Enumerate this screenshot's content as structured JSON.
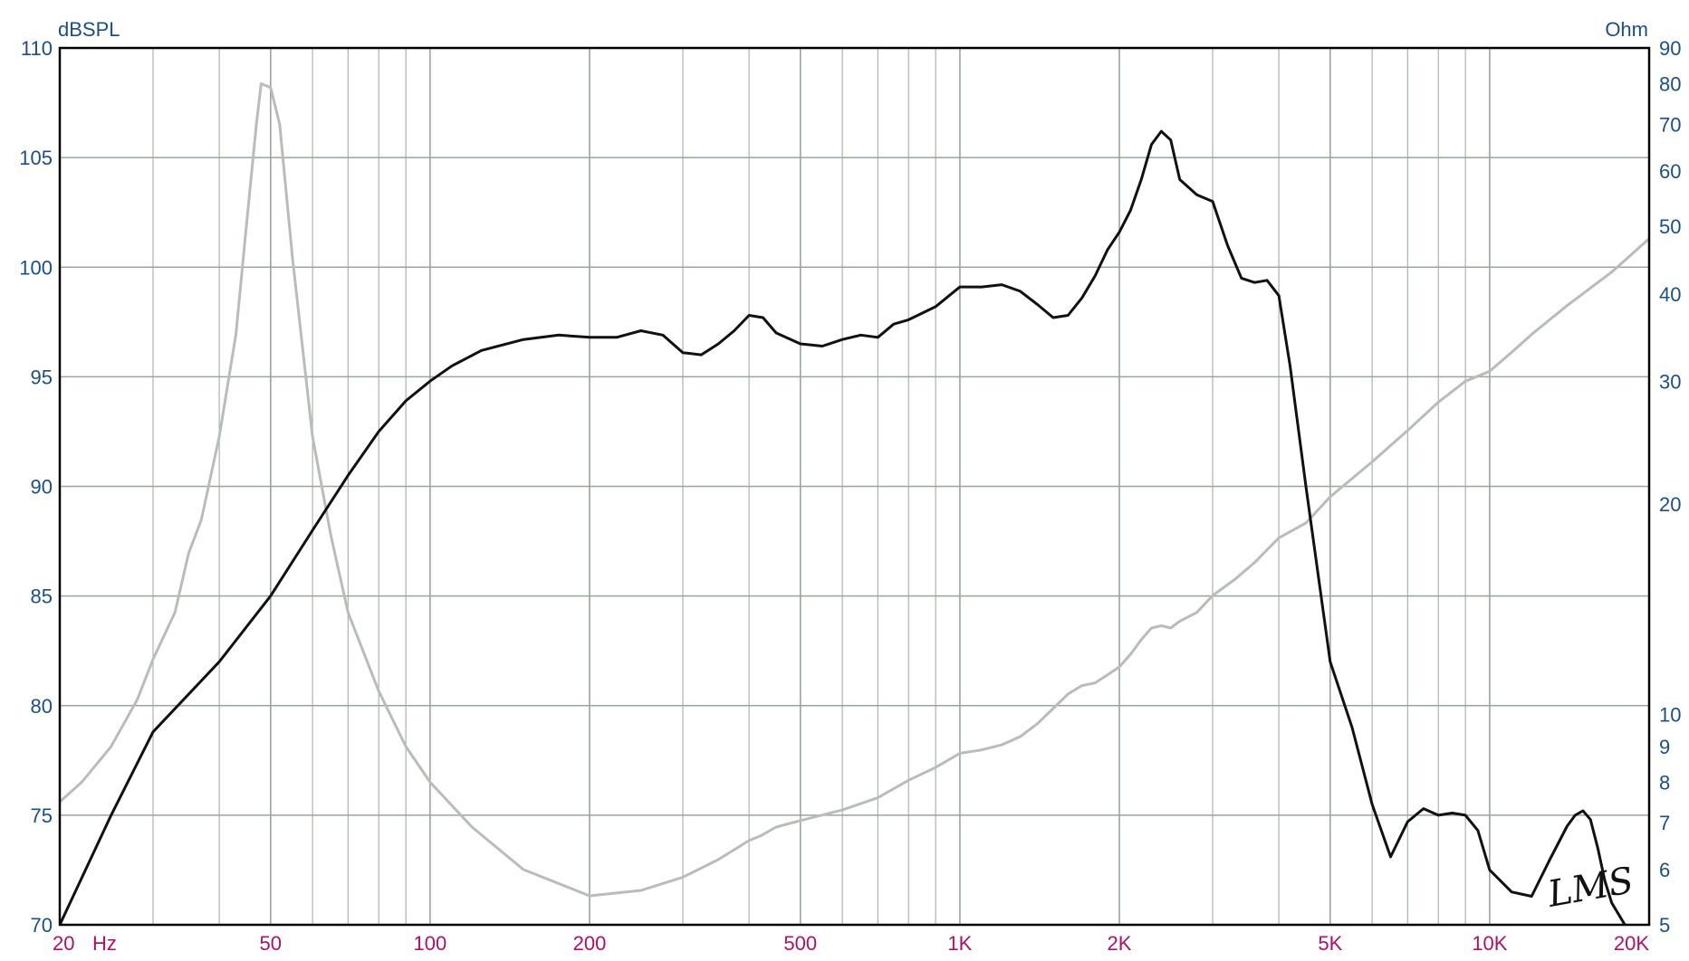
{
  "chart_data": {
    "type": "line",
    "xscale": "log",
    "xlim": [
      20,
      20000
    ],
    "ylabel": "dBSPL",
    "ylim": [
      70,
      110
    ],
    "y2label": "Ohm",
    "y2scale": "log",
    "y2lim": [
      5,
      90
    ],
    "grid": true,
    "y_ticks": [
      "110",
      "105",
      "100",
      "95",
      "90",
      "85",
      "80",
      "75",
      "70"
    ],
    "y2_ticks": [
      "90",
      "80",
      "70",
      "60",
      "50",
      "40",
      "30",
      "20",
      "10",
      "9",
      "8",
      "7",
      "6",
      "5"
    ],
    "x_ticks": [
      {
        "value": 20,
        "label": "20"
      },
      {
        "value": 50,
        "label": "50"
      },
      {
        "value": 100,
        "label": "100"
      },
      {
        "value": 200,
        "label": "200"
      },
      {
        "value": 500,
        "label": "500"
      },
      {
        "value": 1000,
        "label": "1K"
      },
      {
        "value": 2000,
        "label": "2K"
      },
      {
        "value": 5000,
        "label": "5K"
      },
      {
        "value": 10000,
        "label": "10K"
      },
      {
        "value": 20000,
        "label": "20K"
      }
    ],
    "x_unit_label": "Hz",
    "annotation": "LMS",
    "colors": {
      "spl": "#111111",
      "impedance": "#b9bdb9",
      "grid": "#9aa59b",
      "frame": "#000000"
    },
    "series": [
      {
        "axis": "left",
        "x": [
          20,
          25,
          30,
          40,
          50,
          60,
          70,
          80,
          90,
          100,
          110,
          125,
          150,
          175,
          200,
          225,
          250,
          275,
          300,
          325,
          350,
          375,
          400,
          425,
          450,
          500,
          550,
          600,
          650,
          700,
          750,
          800,
          900,
          1000,
          1100,
          1200,
          1300,
          1400,
          1500,
          1600,
          1700,
          1800,
          1900,
          2000,
          2100,
          2200,
          2300,
          2400,
          2500,
          2600,
          2800,
          3000,
          3200,
          3400,
          3600,
          3800,
          4000,
          4200,
          4500,
          5000,
          5500,
          6000,
          6500,
          7000,
          7500,
          8000,
          8500,
          9000,
          9500,
          10000,
          11000,
          12000,
          13000,
          14000,
          14500,
          15000,
          15500,
          16000,
          16500,
          17000,
          18000,
          19000,
          20000
        ],
        "values": [
          70.0,
          75.0,
          78.8,
          82.0,
          85.0,
          88.0,
          90.5,
          92.5,
          93.9,
          94.8,
          95.5,
          96.2,
          96.7,
          96.9,
          96.8,
          96.8,
          97.1,
          96.9,
          96.1,
          96.0,
          96.5,
          97.1,
          97.8,
          97.7,
          97.0,
          96.5,
          96.4,
          96.7,
          96.9,
          96.8,
          97.4,
          97.6,
          98.2,
          99.1,
          99.1,
          99.2,
          98.9,
          98.3,
          97.7,
          97.8,
          98.6,
          99.6,
          100.8,
          101.6,
          102.6,
          104.0,
          105.6,
          106.2,
          105.8,
          104.0,
          103.3,
          103.0,
          101.0,
          99.5,
          99.3,
          99.4,
          98.7,
          95.5,
          90.0,
          82.0,
          79.0,
          75.5,
          73.1,
          74.7,
          75.3,
          75.0,
          75.1,
          75.0,
          74.3,
          72.5,
          71.5,
          71.3,
          73.0,
          74.5,
          75.0,
          75.2,
          74.8,
          73.5,
          72.0,
          71.0,
          70.0,
          69.0,
          68.0
        ]
      },
      {
        "axis": "right",
        "x": [
          20,
          22,
          25,
          28,
          30,
          33,
          35,
          37,
          40,
          43,
          45,
          47,
          48,
          50,
          52,
          55,
          60,
          65,
          70,
          80,
          90,
          100,
          120,
          150,
          200,
          250,
          300,
          350,
          400,
          420,
          450,
          500,
          600,
          700,
          800,
          900,
          1000,
          1100,
          1200,
          1300,
          1400,
          1500,
          1600,
          1700,
          1800,
          1900,
          2000,
          2100,
          2200,
          2300,
          2400,
          2500,
          2600,
          2800,
          3000,
          3300,
          3600,
          4000,
          4500,
          5000,
          6000,
          7000,
          8000,
          9000,
          10000,
          11000,
          12000,
          14000,
          17000,
          20000
        ],
        "values": [
          7.5,
          8.0,
          9.0,
          10.5,
          12.0,
          14.0,
          17.0,
          19.0,
          25.0,
          35.0,
          50.0,
          70.0,
          80.0,
          79.0,
          70.0,
          45.0,
          25.0,
          18.0,
          14.0,
          10.8,
          9.0,
          8.0,
          6.9,
          6.0,
          5.5,
          5.6,
          5.85,
          6.2,
          6.6,
          6.7,
          6.9,
          7.05,
          7.3,
          7.6,
          8.05,
          8.4,
          8.8,
          8.9,
          9.05,
          9.3,
          9.7,
          10.2,
          10.7,
          11.0,
          11.1,
          11.4,
          11.7,
          12.2,
          12.8,
          13.3,
          13.4,
          13.3,
          13.6,
          14.0,
          14.8,
          15.6,
          16.5,
          17.9,
          18.8,
          20.5,
          23.0,
          25.5,
          28.0,
          30.0,
          31.0,
          33.0,
          35.0,
          38.5,
          43.0,
          48.0
        ]
      }
    ]
  }
}
